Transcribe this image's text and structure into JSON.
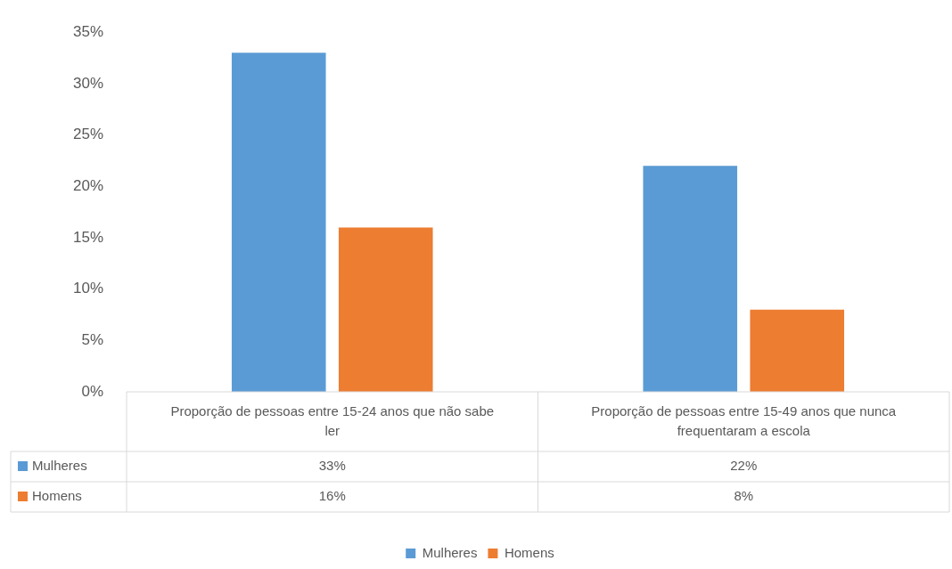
{
  "chart_data": {
    "type": "bar",
    "categories": [
      "Proporção de pessoas entre 15-24 anos que não sabe ler",
      "Proporção de pessoas entre 15-49 anos que nunca frequentaram a escola"
    ],
    "series": [
      {
        "name": "Mulheres",
        "color": "#5b9bd5",
        "values": [
          33,
          22
        ],
        "value_labels": [
          "33%",
          "22%"
        ]
      },
      {
        "name": "Homens",
        "color": "#ed7d31",
        "values": [
          16,
          8
        ],
        "value_labels": [
          "16%",
          "8%"
        ]
      }
    ],
    "ylim": [
      0,
      35
    ],
    "yticks": [
      {
        "value": 0,
        "label": "0%"
      },
      {
        "value": 5,
        "label": "5%"
      },
      {
        "value": 10,
        "label": "10%"
      },
      {
        "value": 15,
        "label": "15%"
      },
      {
        "value": 20,
        "label": "20%"
      },
      {
        "value": 25,
        "label": "25%"
      },
      {
        "value": 30,
        "label": "30%"
      },
      {
        "value": 35,
        "label": "35%"
      }
    ],
    "grid": false,
    "legend": "bottom"
  }
}
